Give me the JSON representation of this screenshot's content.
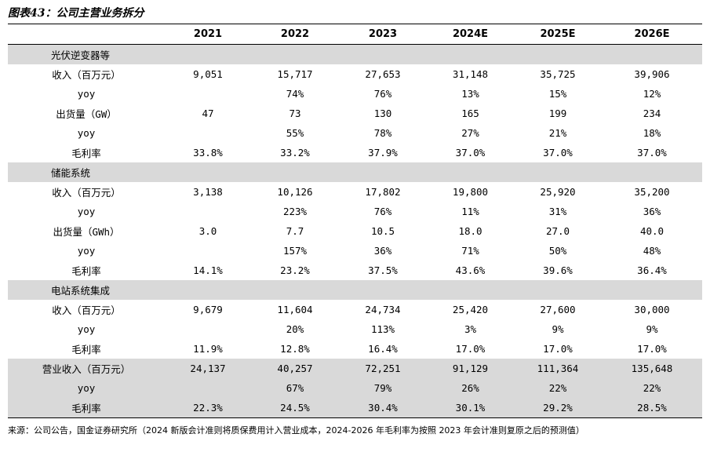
{
  "title": "图表43：公司主营业务拆分",
  "table": {
    "columns": [
      "2021",
      "2022",
      "2023",
      "2024E",
      "2025E",
      "2026E"
    ],
    "sections": [
      {
        "title": "光伏逆变器等",
        "rows": [
          {
            "label": "收入（百万元）",
            "cells": [
              "9,051",
              "15,717",
              "27,653",
              "31,148",
              "35,725",
              "39,906"
            ]
          },
          {
            "label": "yoy",
            "cells": [
              null,
              "74%",
              "76%",
              "13%",
              "15%",
              "12%"
            ]
          },
          {
            "label": "出货量（GW）",
            "cells": [
              "47",
              "73",
              "130",
              "165",
              "199",
              "234"
            ]
          },
          {
            "label": "yoy",
            "cells": [
              null,
              "55%",
              "78%",
              "27%",
              "21%",
              "18%"
            ]
          },
          {
            "label": "毛利率",
            "cells": [
              "33.8%",
              "33.2%",
              "37.9%",
              "37.0%",
              "37.0%",
              "37.0%"
            ]
          }
        ]
      },
      {
        "title": "储能系统",
        "rows": [
          {
            "label": "收入（百万元）",
            "cells": [
              "3,138",
              "10,126",
              "17,802",
              "19,800",
              "25,920",
              "35,200"
            ]
          },
          {
            "label": "yoy",
            "cells": [
              null,
              "223%",
              "76%",
              "11%",
              "31%",
              "36%"
            ]
          },
          {
            "label": "出货量（GWh）",
            "cells": [
              "3.0",
              "7.7",
              "10.5",
              "18.0",
              "27.0",
              "40.0"
            ]
          },
          {
            "label": "yoy",
            "cells": [
              null,
              "157%",
              "36%",
              "71%",
              "50%",
              "48%"
            ]
          },
          {
            "label": "毛利率",
            "cells": [
              "14.1%",
              "23.2%",
              "37.5%",
              "43.6%",
              "39.6%",
              "36.4%"
            ]
          }
        ]
      },
      {
        "title": "电站系统集成",
        "rows": [
          {
            "label": "收入（百万元）",
            "cells": [
              "9,679",
              "11,604",
              "24,734",
              "25,420",
              "27,600",
              "30,000"
            ]
          },
          {
            "label": "yoy",
            "cells": [
              null,
              "20%",
              "113%",
              "3%",
              "9%",
              "9%"
            ]
          },
          {
            "label": "毛利率",
            "cells": [
              "11.9%",
              "12.8%",
              "16.4%",
              "17.0%",
              "17.0%",
              "17.0%"
            ]
          }
        ]
      },
      {
        "rows": [
          {
            "label": "营业收入（百万元）",
            "cells": [
              "24,137",
              "40,257",
              "72,251",
              "91,129",
              "111,364",
              "135,648"
            ]
          },
          {
            "label": "yoy",
            "cells": [
              null,
              "67%",
              "79%",
              "26%",
              "22%",
              "22%"
            ]
          },
          {
            "label": "毛利率",
            "cells": [
              "22.3%",
              "24.5%",
              "30.4%",
              "30.1%",
              "29.2%",
              "28.5%"
            ]
          }
        ]
      }
    ]
  },
  "source": "来源：公司公告，国金证券研究所（2024 新版会计准则将质保费用计入营业成本，2024-2026 年毛利率为按照 2023 年会计准则复原之后的预测值）"
}
